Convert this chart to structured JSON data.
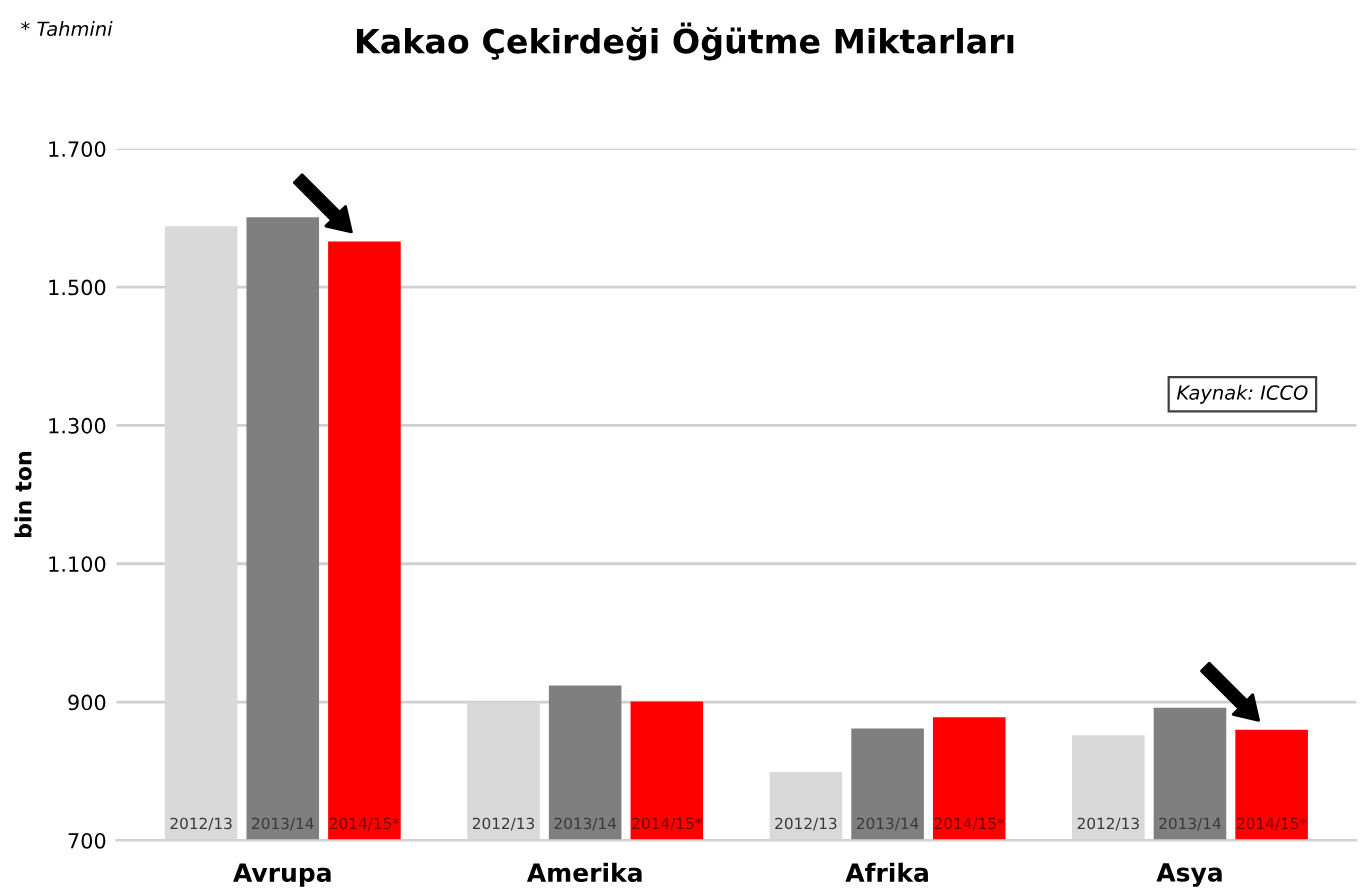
{
  "chart_data": {
    "type": "bar",
    "title": "Kakao Çekirdeği Öğütme Miktarları",
    "ylabel": "bin ton",
    "annotations": [
      "* Tahmini",
      "Kaynak: ICCO"
    ],
    "categories": [
      "Avrupa",
      "Amerika",
      "Afrika",
      "Asya"
    ],
    "series": [
      {
        "name": "2012/13",
        "color": "#d9d9d9",
        "values": [
          1588,
          899,
          799,
          852
        ]
      },
      {
        "name": "2013/14",
        "color": "#7f7f7f",
        "values": [
          1601,
          924,
          862,
          892
        ]
      },
      {
        "name": "2014/15*",
        "color": "#ff0000",
        "values": [
          1566,
          901,
          878,
          860
        ]
      }
    ],
    "ylim": [
      700,
      1700
    ],
    "yticks": [
      {
        "value": 700,
        "label": "700"
      },
      {
        "value": 900,
        "label": "900"
      },
      {
        "value": 1100,
        "label": "1.100"
      },
      {
        "value": 1300,
        "label": "1.300"
      },
      {
        "value": 1500,
        "label": "1.500"
      },
      {
        "value": 1700,
        "label": "1.700"
      }
    ],
    "grid": "y"
  }
}
